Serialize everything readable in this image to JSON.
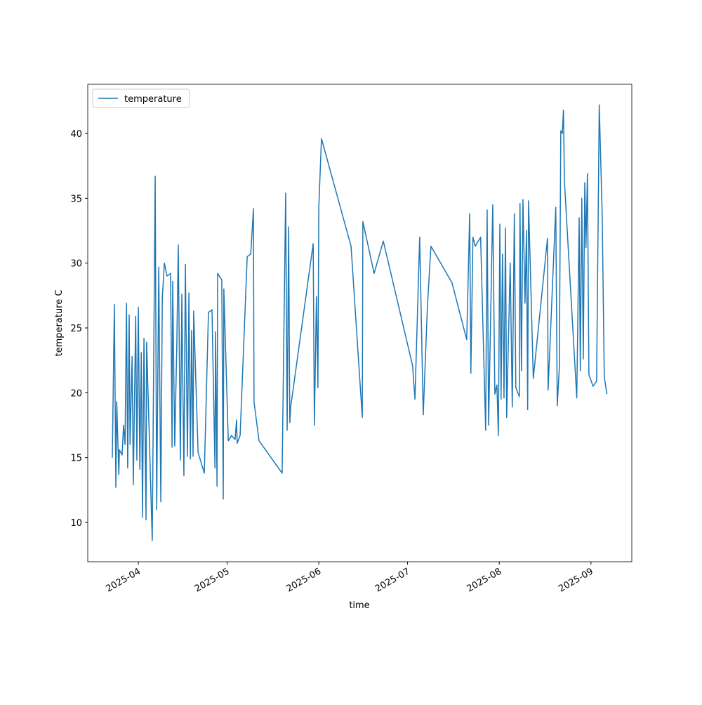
{
  "chart_data": {
    "type": "line",
    "xlabel": "time",
    "ylabel": "temperature C",
    "x": [
      20170.2,
      20170.9,
      20171.4,
      20171.7,
      20172.4,
      20172.6,
      20173.5,
      20174.0,
      20174.5,
      20175.0,
      20175.4,
      20175.9,
      20176.2,
      20176.9,
      20177.3,
      20178.1,
      20178.5,
      20179.0,
      20179.5,
      20180.0,
      20180.4,
      20180.9,
      20181.6,
      20181.8,
      20183.7,
      20184.7,
      20185.2,
      20185.9,
      20186.6,
      20187.1,
      20187.8,
      20188.7,
      20189.9,
      20190.4,
      20190.6,
      20191.3,
      20192.0,
      20192.5,
      20193.2,
      20193.7,
      20194.4,
      20194.9,
      20195.6,
      20196.1,
      20196.6,
      20197.0,
      20197.5,
      20197.7,
      20199.2,
      20201.3,
      20202.7,
      20203.9,
      20204.9,
      20205.1,
      20205.6,
      20205.8,
      20207.2,
      20207.7,
      20207.9,
      20209.4,
      20210.5,
      20211.7,
      20212.2,
      20212.4,
      20213.4,
      20215.8,
      20217.0,
      20217.9,
      20218.1,
      20219.8,
      20227.6,
      20228.8,
      20229.3,
      20229.8,
      20230.2,
      20230.5,
      20238.1,
      20238.5,
      20239.2,
      20239.7,
      20240.0,
      20240.9,
      20250.9,
      20254.7,
      20254.9,
      20258.7,
      20261.8,
      20271.7,
      20272.5,
      20274.1,
      20275.3,
      20276.7,
      20277.9,
      20285.0,
      20290.0,
      20291.0,
      20291.4,
      20292.1,
      20292.9,
      20294.7,
      20296.4,
      20296.9,
      20297.4,
      20298.8,
      20299.5,
      20300.2,
      20300.7,
      20301.2,
      20301.6,
      20302.1,
      20302.6,
      20303.1,
      20303.5,
      20304.7,
      20305.4,
      20306.1,
      20306.6,
      20307.8,
      20308.0,
      20308.5,
      20309.0,
      20309.7,
      20310.2,
      20310.6,
      20310.9,
      20312.5,
      20317.3,
      20317.5,
      20320.1,
      20320.6,
      20321.3,
      20321.8,
      20322.3,
      20322.7,
      20323.0,
      20327.2,
      20328.0,
      20328.4,
      20328.9,
      20329.4,
      20329.9,
      20330.3,
      20330.8,
      20331.3,
      20332.7,
      20333.9,
      20334.8,
      20335.8,
      20336.5,
      20337.4
    ],
    "series": [
      {
        "name": "temperature",
        "color": "#1f77b4",
        "values": [
          15.0,
          26.8,
          12.7,
          19.3,
          13.7,
          15.6,
          15.2,
          17.5,
          16.0,
          26.9,
          14.2,
          26.0,
          16.0,
          22.8,
          12.9,
          25.9,
          14.8,
          26.6,
          14.1,
          23.1,
          10.4,
          24.2,
          10.2,
          23.9,
          8.6,
          36.7,
          11.0,
          29.7,
          11.6,
          27.3,
          30.0,
          29.0,
          29.2,
          15.8,
          28.6,
          15.9,
          23.7,
          31.4,
          14.8,
          27.6,
          13.6,
          29.9,
          15.1,
          27.7,
          14.9,
          24.8,
          15.1,
          26.3,
          15.4,
          13.8,
          26.2,
          26.4,
          14.2,
          24.7,
          12.8,
          29.2,
          28.7,
          11.8,
          28.0,
          16.3,
          16.7,
          16.4,
          17.9,
          16.1,
          16.7,
          30.5,
          30.7,
          34.2,
          19.3,
          16.3,
          13.8,
          35.4,
          17.1,
          32.8,
          17.7,
          18.9,
          31.5,
          17.5,
          27.4,
          20.4,
          34.3,
          39.6,
          31.3,
          18.1,
          33.2,
          29.2,
          31.7,
          22.1,
          19.5,
          32.0,
          18.3,
          26.6,
          31.3,
          28.5,
          24.1,
          33.8,
          21.5,
          32.0,
          31.3,
          32.0,
          17.1,
          34.1,
          17.5,
          34.5,
          19.9,
          20.6,
          16.7,
          33.0,
          19.5,
          30.7,
          19.6,
          32.7,
          18.1,
          30.0,
          18.9,
          33.8,
          20.4,
          19.7,
          34.6,
          21.7,
          34.9,
          26.9,
          32.5,
          18.7,
          34.8,
          21.1,
          31.9,
          20.2,
          34.3,
          19.0,
          21.9,
          40.2,
          40.0,
          41.8,
          36.4,
          19.6,
          33.5,
          21.7,
          35.0,
          22.6,
          36.2,
          31.2,
          36.9,
          21.4,
          20.5,
          20.9,
          42.2,
          33.6,
          21.2,
          19.9
        ]
      }
    ],
    "xlim": [
      20161.9,
      20345.8
    ],
    "xticks": [
      {
        "value": 20179,
        "label": "2025-04"
      },
      {
        "value": 20209,
        "label": "2025-05"
      },
      {
        "value": 20240,
        "label": "2025-06"
      },
      {
        "value": 20270,
        "label": "2025-07"
      },
      {
        "value": 20301,
        "label": "2025-08"
      },
      {
        "value": 20332,
        "label": "2025-09"
      }
    ],
    "ylim": [
      6.97,
      43.79
    ],
    "yticks": [
      10,
      15,
      20,
      25,
      30,
      35,
      40
    ],
    "legend": "upper left"
  }
}
